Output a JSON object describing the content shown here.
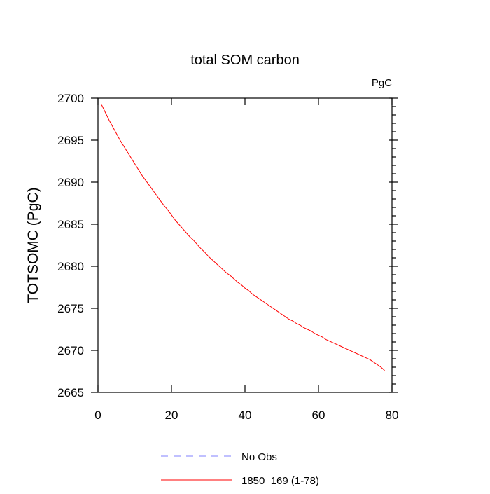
{
  "chart_data": {
    "type": "line",
    "title": "total SOM carbon",
    "units_label": "PgC",
    "ylabel": "TOTSOMC  (PgC)",
    "xlabel": "",
    "xlim": [
      0,
      80
    ],
    "ylim": [
      2665,
      2700
    ],
    "x_ticks": [
      "0",
      "20",
      "40",
      "60",
      "80"
    ],
    "y_ticks": [
      "2665",
      "2670",
      "2675",
      "2680",
      "2685",
      "2690",
      "2695",
      "2700"
    ],
    "grid": false,
    "legend_position": "bottom-center",
    "legend": [
      {
        "label": "No Obs",
        "color": "#8080ff",
        "dash": "dashed"
      },
      {
        "label": "1850_169 (1-78)",
        "color": "#ff0000",
        "dash": "solid"
      }
    ],
    "series": [
      {
        "name": "1850_169 (1-78)",
        "color": "#ff0000",
        "x": [
          1,
          2,
          3,
          4,
          5,
          6,
          7,
          8,
          9,
          10,
          11,
          12,
          13,
          14,
          15,
          16,
          17,
          18,
          19,
          20,
          21,
          22,
          23,
          24,
          25,
          26,
          27,
          28,
          29,
          30,
          31,
          32,
          33,
          34,
          35,
          36,
          37,
          38,
          39,
          40,
          41,
          42,
          43,
          44,
          45,
          46,
          47,
          48,
          49,
          50,
          51,
          52,
          53,
          54,
          55,
          56,
          57,
          58,
          59,
          60,
          61,
          62,
          63,
          64,
          65,
          66,
          67,
          68,
          69,
          70,
          71,
          72,
          73,
          74,
          75,
          76,
          77,
          78
        ],
        "values": [
          2699.2,
          2698.3,
          2697.4,
          2696.6,
          2695.8,
          2695.0,
          2694.3,
          2693.6,
          2692.9,
          2692.2,
          2691.5,
          2690.8,
          2690.2,
          2689.6,
          2689.0,
          2688.4,
          2687.8,
          2687.2,
          2686.7,
          2686.1,
          2685.5,
          2685.0,
          2684.5,
          2684.0,
          2683.5,
          2683.1,
          2682.6,
          2682.1,
          2681.7,
          2681.2,
          2680.8,
          2680.4,
          2680.0,
          2679.6,
          2679.2,
          2678.9,
          2678.5,
          2678.1,
          2677.8,
          2677.4,
          2677.1,
          2676.7,
          2676.4,
          2676.1,
          2675.8,
          2675.5,
          2675.2,
          2674.9,
          2674.6,
          2674.3,
          2674.0,
          2673.7,
          2673.5,
          2673.2,
          2673.0,
          2672.7,
          2672.5,
          2672.3,
          2672.0,
          2671.8,
          2671.6,
          2671.3,
          2671.1,
          2670.9,
          2670.7,
          2670.5,
          2670.3,
          2670.1,
          2669.9,
          2669.7,
          2669.5,
          2669.3,
          2669.1,
          2668.9,
          2668.6,
          2668.3,
          2668.0,
          2667.6
        ]
      }
    ]
  }
}
